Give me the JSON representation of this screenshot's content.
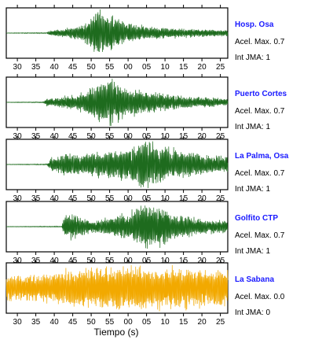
{
  "chart_data": {
    "type": "line",
    "xlabel": "Tiempo (s)",
    "x_tick_labels": [
      "30",
      "35",
      "40",
      "45",
      "50",
      "55",
      "00",
      "05",
      "10",
      "15",
      "20",
      "25"
    ],
    "x_tick_seconds": [
      30,
      35,
      40,
      45,
      50,
      55,
      60,
      65,
      70,
      75,
      80,
      85
    ],
    "xlim_seconds": [
      27,
      87
    ],
    "amplitude_range": [
      -1,
      1
    ],
    "panels": [
      {
        "name": "Hosp. Osa",
        "acel_label": "Acel. Max. 0.7",
        "int_label": "Int JMA: 1",
        "color": "#1e6b1e",
        "envelope": [
          [
            27,
            0.01
          ],
          [
            38,
            0.02
          ],
          [
            39,
            0.12
          ],
          [
            43,
            0.18
          ],
          [
            46,
            0.28
          ],
          [
            48,
            0.38
          ],
          [
            50,
            0.75
          ],
          [
            52,
            1.0
          ],
          [
            54,
            0.85
          ],
          [
            57,
            0.6
          ],
          [
            60,
            0.4
          ],
          [
            65,
            0.28
          ],
          [
            70,
            0.22
          ],
          [
            75,
            0.18
          ],
          [
            80,
            0.15
          ],
          [
            87,
            0.12
          ]
        ]
      },
      {
        "name": "Puerto Cortes",
        "acel_label": "Acel. Max. 0.7",
        "int_label": "Int JMA: 1",
        "color": "#1e6b1e",
        "envelope": [
          [
            27,
            0.01
          ],
          [
            37,
            0.02
          ],
          [
            38,
            0.15
          ],
          [
            42,
            0.22
          ],
          [
            46,
            0.3
          ],
          [
            49,
            0.5
          ],
          [
            52,
            0.75
          ],
          [
            55,
            1.0
          ],
          [
            57,
            0.8
          ],
          [
            60,
            0.55
          ],
          [
            65,
            0.45
          ],
          [
            70,
            0.35
          ],
          [
            75,
            0.25
          ],
          [
            80,
            0.2
          ],
          [
            87,
            0.15
          ]
        ]
      },
      {
        "name": "La Palma, Osa",
        "acel_label": "Acel. Max. 0.7",
        "int_label": "Int JMA: 1",
        "color": "#1e6b1e",
        "envelope": [
          [
            27,
            0.01
          ],
          [
            38,
            0.02
          ],
          [
            39,
            0.25
          ],
          [
            43,
            0.45
          ],
          [
            48,
            0.45
          ],
          [
            52,
            0.5
          ],
          [
            56,
            0.6
          ],
          [
            60,
            0.7
          ],
          [
            63,
            0.85
          ],
          [
            65,
            1.0
          ],
          [
            68,
            0.8
          ],
          [
            72,
            0.6
          ],
          [
            76,
            0.5
          ],
          [
            80,
            0.4
          ],
          [
            87,
            0.3
          ]
        ]
      },
      {
        "name": "Golfito CTP",
        "acel_label": "Acel. Max. 0.7",
        "int_label": "Int JMA: 1",
        "color": "#1e6b1e",
        "envelope": [
          [
            27,
            0.01
          ],
          [
            42,
            0.02
          ],
          [
            43,
            0.6
          ],
          [
            45,
            0.5
          ],
          [
            50,
            0.25
          ],
          [
            55,
            0.35
          ],
          [
            60,
            0.55
          ],
          [
            63,
            0.8
          ],
          [
            65,
            1.0
          ],
          [
            68,
            0.85
          ],
          [
            72,
            0.55
          ],
          [
            76,
            0.4
          ],
          [
            80,
            0.3
          ],
          [
            87,
            0.22
          ]
        ]
      },
      {
        "name": "La Sabana",
        "acel_label": "Acel. Max. 0.0",
        "int_label": "Int JMA: 0",
        "color": "#f2a900",
        "envelope": [
          [
            27,
            0.5
          ],
          [
            35,
            0.55
          ],
          [
            40,
            0.6
          ],
          [
            45,
            0.75
          ],
          [
            50,
            0.8
          ],
          [
            55,
            0.8
          ],
          [
            60,
            0.85
          ],
          [
            65,
            0.85
          ],
          [
            70,
            0.85
          ],
          [
            75,
            0.8
          ],
          [
            80,
            0.75
          ],
          [
            87,
            0.75
          ]
        ]
      }
    ]
  }
}
